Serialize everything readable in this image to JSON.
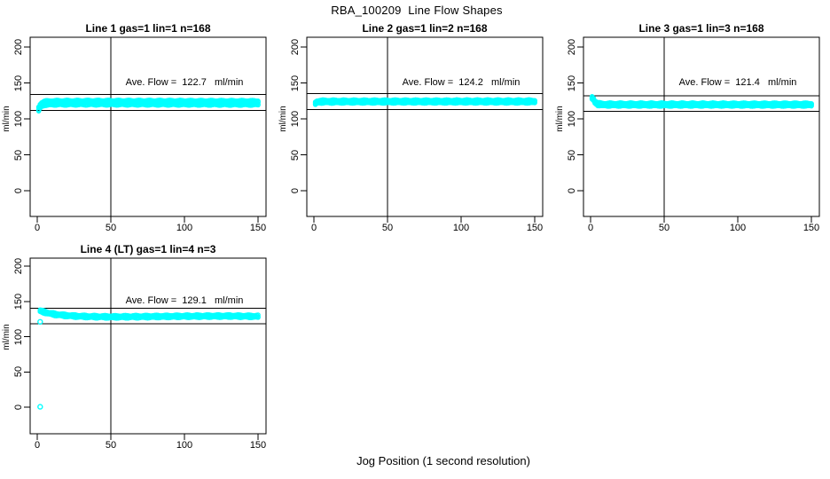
{
  "figure": {
    "title": "RBA_100209  Line Flow Shapes",
    "xlabel": "Jog Position (1 second resolution)",
    "background": "#ffffff"
  },
  "colors": {
    "series": "#00ffff",
    "axis": "#000000",
    "text": "#000000"
  },
  "chart_data": [
    {
      "type": "scatter",
      "title": "Line 1 gas=1 lin=1 n=168",
      "annotation": "Ave. Flow =  122.7   ml/min",
      "ave_flow": 122.7,
      "n_jogs": 168,
      "ylabel": "ml/min",
      "xlim": [
        0,
        150
      ],
      "ylim": [
        0,
        200
      ],
      "x_ticks": [
        0,
        50,
        100,
        150
      ],
      "y_ticks": [
        0,
        50,
        100,
        150,
        200
      ],
      "x_tick_labels": [
        "0",
        "50",
        "100",
        "150"
      ],
      "y_tick_labels": [
        "0",
        "50",
        "100",
        "150",
        "200"
      ],
      "ref_vline": 50,
      "ref_hlines": [
        133.7,
        111.7
      ],
      "profile": [
        [
          1,
          113.5
        ],
        [
          2,
          117.5
        ],
        [
          3,
          120.0
        ],
        [
          5,
          121.8
        ],
        [
          10,
          122.4
        ],
        [
          40,
          122.6
        ],
        [
          150,
          122.3
        ]
      ],
      "band_halfwidth": 3.0,
      "n_layers": 5,
      "outliers": []
    },
    {
      "type": "scatter",
      "title": "Line 2 gas=1 lin=2 n=168",
      "annotation": "Ave. Flow =  124.2   ml/min",
      "ave_flow": 124.2,
      "n_jogs": 168,
      "ylabel": "ml/min",
      "xlim": [
        0,
        150
      ],
      "ylim": [
        0,
        200
      ],
      "x_ticks": [
        0,
        50,
        100,
        150
      ],
      "y_ticks": [
        0,
        50,
        100,
        150,
        200
      ],
      "x_tick_labels": [
        "0",
        "50",
        "100",
        "150"
      ],
      "y_tick_labels": [
        "0",
        "50",
        "100",
        "150",
        "200"
      ],
      "ref_vline": 50,
      "ref_hlines": [
        135.2,
        113.2
      ],
      "profile": [
        [
          1,
          121.5
        ],
        [
          2,
          123.2
        ],
        [
          4,
          124.1
        ],
        [
          150,
          124.2
        ]
      ],
      "band_halfwidth": 1.9,
      "n_layers": 5,
      "outliers": []
    },
    {
      "type": "scatter",
      "title": "Line 3 gas=1 lin=3 n=168",
      "annotation": "Ave. Flow =  121.4   ml/min",
      "ave_flow": 121.4,
      "n_jogs": 168,
      "ylabel": "ml/min",
      "xlim": [
        0,
        150
      ],
      "ylim": [
        0,
        200
      ],
      "x_ticks": [
        0,
        50,
        100,
        150
      ],
      "y_ticks": [
        0,
        50,
        100,
        150,
        200
      ],
      "x_tick_labels": [
        "0",
        "50",
        "100",
        "150"
      ],
      "y_tick_labels": [
        "0",
        "50",
        "100",
        "150",
        "200"
      ],
      "ref_vline": 50,
      "ref_hlines": [
        132.4,
        110.4
      ],
      "profile": [
        [
          1,
          129.0
        ],
        [
          2,
          127.0
        ],
        [
          3,
          123.5
        ],
        [
          5,
          120.6
        ],
        [
          8,
          119.9
        ],
        [
          150,
          119.8
        ]
      ],
      "band_halfwidth": 1.9,
      "n_layers": 5,
      "outliers": []
    },
    {
      "type": "scatter",
      "title": "Line 4 (LT) gas=1 lin=4 n=3",
      "annotation": "Ave. Flow =  129.1   ml/min",
      "ave_flow": 129.1,
      "n_jogs": 3,
      "ylabel": "ml/min",
      "xlim": [
        0,
        150
      ],
      "ylim": [
        0,
        200
      ],
      "x_ticks": [
        0,
        50,
        100,
        150
      ],
      "y_ticks": [
        0,
        50,
        100,
        150,
        200
      ],
      "x_tick_labels": [
        "0",
        "50",
        "100",
        "150"
      ],
      "y_tick_labels": [
        "0",
        "50",
        "100",
        "150",
        "200"
      ],
      "ref_vline": 50,
      "ref_hlines": [
        140.1,
        118.1
      ],
      "profile": [
        [
          2,
          136.5
        ],
        [
          4,
          135.2
        ],
        [
          8,
          133.2
        ],
        [
          12,
          131.6
        ],
        [
          18,
          130.2
        ],
        [
          25,
          129.2
        ],
        [
          35,
          128.4
        ],
        [
          50,
          128.0
        ],
        [
          70,
          128.3
        ],
        [
          100,
          128.9
        ],
        [
          130,
          129.2
        ],
        [
          150,
          128.7
        ]
      ],
      "band_halfwidth": 1.5,
      "n_layers": 3,
      "outliers": [
        [
          2,
          121.0
        ],
        [
          2,
          0.5
        ]
      ]
    }
  ]
}
